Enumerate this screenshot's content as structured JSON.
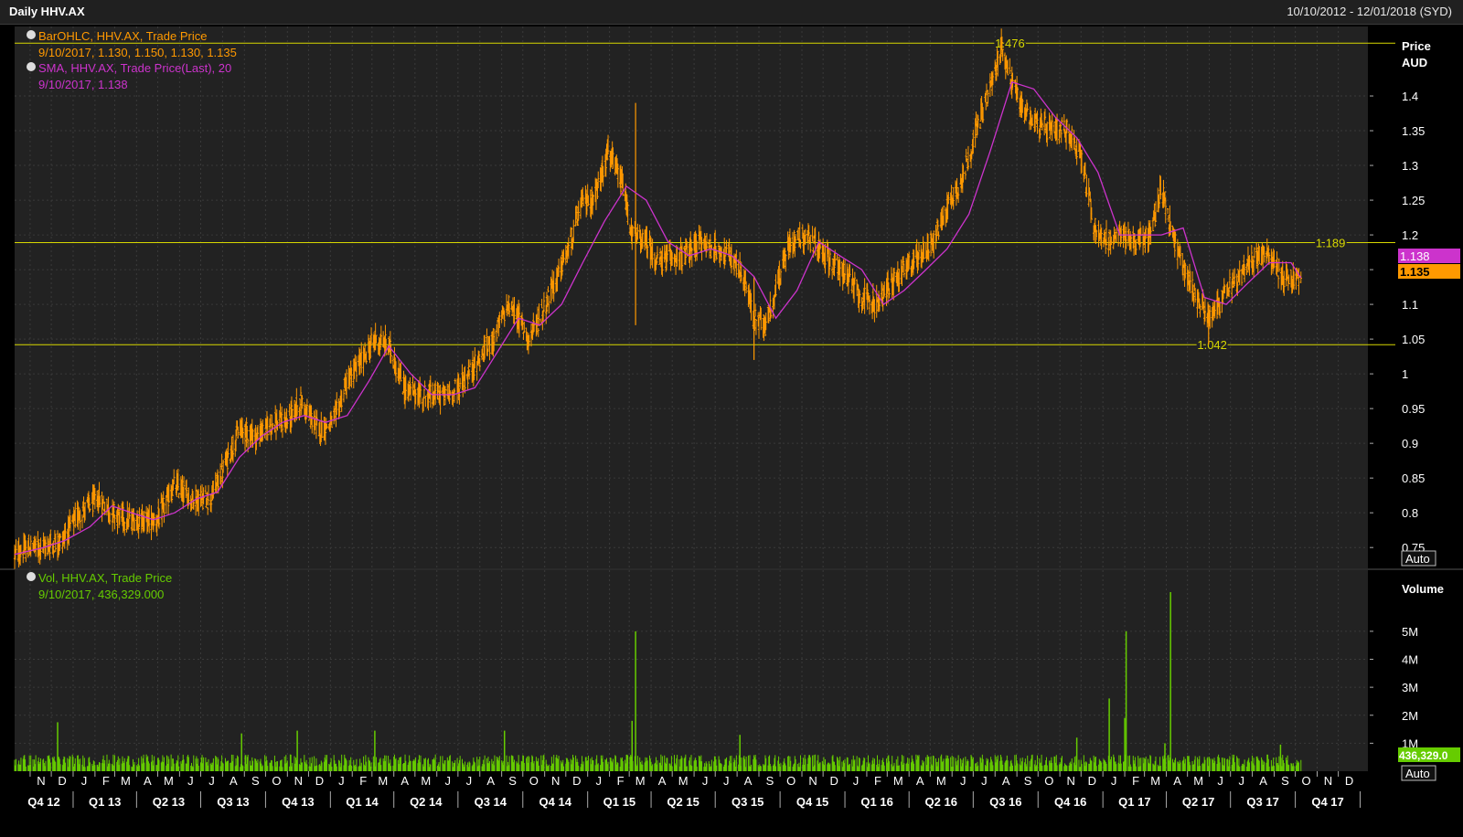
{
  "window": {
    "title": "Daily HHV.AX",
    "date_range": "10/10/2012 - 12/01/2018 (SYD)"
  },
  "colors": {
    "price": "#ff9900",
    "sma": "#cc33cc",
    "volume": "#66cc00",
    "level_line": "#d8d800",
    "grid": "#3a3a3a",
    "plot_bg": "#222222"
  },
  "legend": {
    "bar_title": "BarOHLC, HHV.AX, Trade Price",
    "bar_values": "9/10/2017, 1.130, 1.150, 1.130, 1.135",
    "sma_title": "SMA, HHV.AX, Trade Price(Last),  20",
    "sma_values": "9/10/2017, 1.138",
    "vol_title": "Vol, HHV.AX, Trade Price",
    "vol_values": "9/10/2017, 436,329.000"
  },
  "price_axis": {
    "title": "Price",
    "unit": "AUD",
    "auto_label": "Auto",
    "current_sma": "1.138",
    "current_price": "1.135"
  },
  "volume_axis": {
    "title": "Volume",
    "auto_label": "Auto",
    "current_volume": "436,329.0"
  },
  "chart_data": [
    {
      "type": "line",
      "panel": "price",
      "ylim": [
        0.72,
        1.5
      ],
      "x_range": [
        "2012-10-10",
        "2018-01-12"
      ],
      "y_ticks": [
        "1.4",
        "1.35",
        "1.3",
        "1.25",
        "1.2",
        "1.15",
        "1.1",
        "1.05",
        "1",
        "0.95",
        "0.9",
        "0.85",
        "0.8",
        "0.75"
      ],
      "y_tick_values": [
        1.4,
        1.35,
        1.3,
        1.25,
        1.2,
        1.15,
        1.1,
        1.05,
        1.0,
        0.95,
        0.9,
        0.85,
        0.8,
        0.75
      ],
      "horizontal_lines": [
        {
          "value": 1.476,
          "label": "1.476",
          "anchor_date": "2016-08-22"
        },
        {
          "value": 1.189,
          "label": "1.189",
          "anchor_date": "2017-11-20"
        },
        {
          "value": 1.042,
          "label": "1.042",
          "anchor_date": "2017-06-05"
        }
      ],
      "series": [
        {
          "name": "BarOHLC, HHV.AX, Trade Price",
          "style": "ohlc",
          "dates": [
            "2012-10-10",
            "2012-11-01",
            "2012-11-20",
            "2012-12-15",
            "2013-01-10",
            "2013-02-05",
            "2013-02-25",
            "2013-03-20",
            "2013-04-10",
            "2013-05-01",
            "2013-05-25",
            "2013-06-20",
            "2013-07-15",
            "2013-08-05",
            "2013-08-25",
            "2013-09-20",
            "2013-10-10",
            "2013-10-30",
            "2013-11-20",
            "2013-12-15",
            "2014-01-05",
            "2014-01-25",
            "2014-02-15",
            "2014-03-05",
            "2014-03-25",
            "2014-04-15",
            "2014-05-05",
            "2014-05-30",
            "2014-06-20",
            "2014-07-10",
            "2014-07-30",
            "2014-08-20",
            "2014-09-10",
            "2014-09-25",
            "2014-10-10",
            "2014-10-25",
            "2014-11-15",
            "2014-12-05",
            "2014-12-25",
            "2015-01-10",
            "2015-01-30",
            "2015-02-20",
            "2015-03-05",
            "2015-03-25",
            "2015-04-10",
            "2015-04-30",
            "2015-05-20",
            "2015-06-10",
            "2015-07-01",
            "2015-07-20",
            "2015-08-10",
            "2015-08-25",
            "2015-09-10",
            "2015-09-25",
            "2015-10-15",
            "2015-11-05",
            "2015-11-25",
            "2015-12-15",
            "2016-01-05",
            "2016-01-25",
            "2016-02-15",
            "2016-03-05",
            "2016-03-25",
            "2016-04-15",
            "2016-05-05",
            "2016-05-25",
            "2016-06-15",
            "2016-07-05",
            "2016-07-25",
            "2016-08-10",
            "2016-08-25",
            "2016-09-10",
            "2016-09-30",
            "2016-10-20",
            "2016-11-10",
            "2016-11-30",
            "2016-12-20",
            "2017-01-10",
            "2017-01-30",
            "2017-02-20",
            "2017-03-10",
            "2017-03-25",
            "2017-04-10",
            "2017-04-30",
            "2017-05-20",
            "2017-06-05",
            "2017-06-25",
            "2017-07-15",
            "2017-08-05",
            "2017-08-25",
            "2017-09-15",
            "2017-10-09"
          ],
          "values": [
            0.74,
            0.75,
            0.75,
            0.76,
            0.8,
            0.82,
            0.8,
            0.79,
            0.79,
            0.79,
            0.84,
            0.82,
            0.82,
            0.87,
            0.92,
            0.91,
            0.93,
            0.93,
            0.96,
            0.92,
            0.93,
            0.99,
            1.02,
            1.05,
            1.04,
            0.98,
            0.97,
            0.97,
            0.97,
            0.99,
            1.02,
            1.05,
            1.1,
            1.08,
            1.05,
            1.08,
            1.13,
            1.18,
            1.25,
            1.25,
            1.32,
            1.27,
            1.2,
            1.19,
            1.16,
            1.17,
            1.17,
            1.19,
            1.18,
            1.17,
            1.14,
            1.08,
            1.07,
            1.12,
            1.19,
            1.2,
            1.18,
            1.16,
            1.14,
            1.11,
            1.1,
            1.13,
            1.15,
            1.17,
            1.19,
            1.24,
            1.28,
            1.35,
            1.41,
            1.47,
            1.42,
            1.38,
            1.36,
            1.35,
            1.35,
            1.32,
            1.21,
            1.19,
            1.2,
            1.19,
            1.2,
            1.27,
            1.2,
            1.14,
            1.1,
            1.08,
            1.12,
            1.14,
            1.17,
            1.17,
            1.14,
            1.135
          ]
        },
        {
          "name": "SMA, HHV.AX, Trade Price(Last),  20",
          "style": "line",
          "dates": [
            "2012-10-10",
            "2012-11-20",
            "2012-12-20",
            "2013-01-25",
            "2013-02-25",
            "2013-03-25",
            "2013-04-25",
            "2013-05-25",
            "2013-06-25",
            "2013-07-25",
            "2013-08-25",
            "2013-09-25",
            "2013-10-25",
            "2013-11-25",
            "2013-12-25",
            "2014-01-25",
            "2014-02-25",
            "2014-03-25",
            "2014-04-25",
            "2014-05-25",
            "2014-06-25",
            "2014-07-25",
            "2014-08-25",
            "2014-09-25",
            "2014-10-25",
            "2014-11-25",
            "2014-12-25",
            "2015-01-25",
            "2015-02-25",
            "2015-03-25",
            "2015-04-25",
            "2015-05-25",
            "2015-06-25",
            "2015-07-25",
            "2015-08-25",
            "2015-09-25",
            "2015-10-25",
            "2015-11-25",
            "2015-12-25",
            "2016-01-25",
            "2016-02-25",
            "2016-03-25",
            "2016-04-25",
            "2016-05-25",
            "2016-06-25",
            "2016-07-25",
            "2016-08-25",
            "2016-09-25",
            "2016-10-25",
            "2016-11-25",
            "2016-12-25",
            "2017-01-25",
            "2017-02-25",
            "2017-03-25",
            "2017-04-25",
            "2017-05-25",
            "2017-06-25",
            "2017-07-25",
            "2017-08-25",
            "2017-09-25",
            "2017-10-09"
          ],
          "values": [
            0.74,
            0.75,
            0.76,
            0.78,
            0.81,
            0.8,
            0.79,
            0.8,
            0.82,
            0.83,
            0.88,
            0.91,
            0.93,
            0.94,
            0.93,
            0.94,
            0.99,
            1.04,
            1.0,
            0.97,
            0.97,
            0.98,
            1.03,
            1.08,
            1.07,
            1.1,
            1.16,
            1.22,
            1.27,
            1.25,
            1.19,
            1.17,
            1.18,
            1.17,
            1.14,
            1.08,
            1.12,
            1.19,
            1.17,
            1.15,
            1.1,
            1.12,
            1.15,
            1.18,
            1.23,
            1.32,
            1.42,
            1.41,
            1.37,
            1.34,
            1.29,
            1.2,
            1.2,
            1.2,
            1.21,
            1.11,
            1.1,
            1.13,
            1.16,
            1.16,
            1.138
          ]
        }
      ]
    },
    {
      "type": "bar",
      "panel": "volume",
      "ylim": [
        0,
        6400000
      ],
      "y_ticks": [
        "5M",
        "4M",
        "3M",
        "2M",
        "1M"
      ],
      "y_tick_values": [
        5000000,
        4000000,
        3000000,
        2000000,
        1000000
      ],
      "series": [
        {
          "name": "Vol, HHV.AX, Trade Price",
          "spikes": [
            {
              "date": "2012-12-10",
              "value": 1750000
            },
            {
              "date": "2013-08-28",
              "value": 1350000
            },
            {
              "date": "2013-11-15",
              "value": 1450000
            },
            {
              "date": "2014-03-05",
              "value": 1450000
            },
            {
              "date": "2014-09-05",
              "value": 1450000
            },
            {
              "date": "2015-03-05",
              "value": 1800000
            },
            {
              "date": "2015-03-10",
              "value": 5000000
            },
            {
              "date": "2015-08-05",
              "value": 1300000
            },
            {
              "date": "2016-11-25",
              "value": 1200000
            },
            {
              "date": "2017-01-10",
              "value": 2600000
            },
            {
              "date": "2017-02-01",
              "value": 1900000
            },
            {
              "date": "2017-02-03",
              "value": 5000000
            },
            {
              "date": "2017-03-30",
              "value": 1000000
            },
            {
              "date": "2017-04-07",
              "value": 6400000
            },
            {
              "date": "2017-09-10",
              "value": 950000
            }
          ]
        }
      ]
    }
  ],
  "time_axis": {
    "months": [
      "N",
      "D",
      "J",
      "F",
      "M",
      "A",
      "M",
      "J",
      "J",
      "A",
      "S",
      "O",
      "N",
      "D",
      "J",
      "F",
      "M",
      "A",
      "M",
      "J",
      "J",
      "A",
      "S",
      "O",
      "N",
      "D",
      "J",
      "F",
      "M",
      "A",
      "M",
      "J",
      "J",
      "A",
      "S",
      "O",
      "N",
      "D",
      "J",
      "F",
      "M",
      "A",
      "M",
      "J",
      "J",
      "A",
      "S",
      "O",
      "N",
      "D",
      "J",
      "F",
      "M",
      "A",
      "M",
      "J",
      "J",
      "A",
      "S",
      "O",
      "N",
      "D"
    ],
    "quarters": [
      "Q4 12",
      "Q1 13",
      "Q2 13",
      "Q3 13",
      "Q4 13",
      "Q1 14",
      "Q2 14",
      "Q3 14",
      "Q4 14",
      "Q1 15",
      "Q2 15",
      "Q3 15",
      "Q4 15",
      "Q1 16",
      "Q2 16",
      "Q3 16",
      "Q4 16",
      "Q1 17",
      "Q2 17",
      "Q3 17",
      "Q4 17"
    ]
  }
}
